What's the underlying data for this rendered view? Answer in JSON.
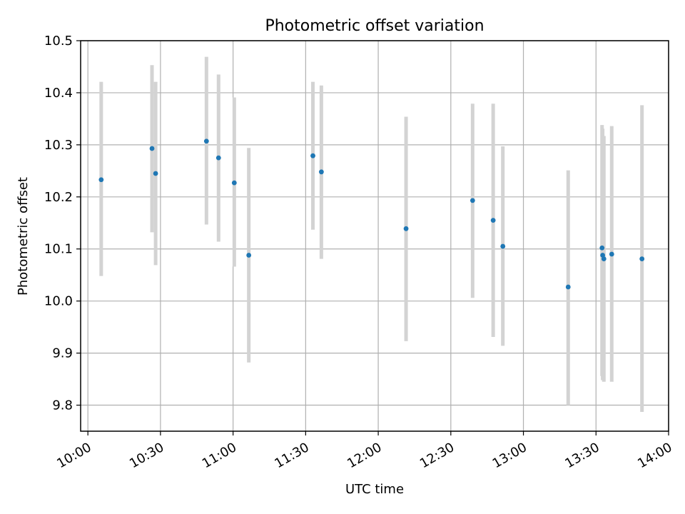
{
  "chart_data": {
    "type": "scatter",
    "title": "Photometric offset variation",
    "xlabel": "UTC time",
    "ylabel": "Photometric offset",
    "x_axis_type": "time",
    "xlim": [
      "09:57",
      "14:00"
    ],
    "ylim": [
      9.75,
      10.5
    ],
    "x_ticks": [
      "10:00",
      "10:30",
      "11:00",
      "11:30",
      "12:00",
      "12:30",
      "13:00",
      "13:30",
      "14:00"
    ],
    "y_ticks": [
      "9.8",
      "9.9",
      "10.0",
      "10.1",
      "10.2",
      "10.3",
      "10.4",
      "10.5"
    ],
    "grid": true,
    "colors": {
      "points": "#1f77b4",
      "error_bars": "#d3d3d3",
      "grid": "#b0b0b0"
    },
    "series": [
      {
        "points": [
          {
            "x": "10:05:30",
            "y": 10.233,
            "y_low": 10.048,
            "y_high": 10.421
          },
          {
            "x": "10:26:30",
            "y": 10.293,
            "y_low": 10.132,
            "y_high": 10.453
          },
          {
            "x": "10:28:00",
            "y": 10.245,
            "y_low": 10.069,
            "y_high": 10.421
          },
          {
            "x": "10:49:00",
            "y": 10.307,
            "y_low": 10.147,
            "y_high": 10.469
          },
          {
            "x": "10:54:00",
            "y": 10.275,
            "y_low": 10.114,
            "y_high": 10.435
          },
          {
            "x": "11:00:30",
            "y": 10.227,
            "y_low": 10.066,
            "y_high": 10.391
          },
          {
            "x": "11:06:30",
            "y": 10.088,
            "y_low": 9.882,
            "y_high": 10.294
          },
          {
            "x": "11:33:00",
            "y": 10.279,
            "y_low": 10.137,
            "y_high": 10.421
          },
          {
            "x": "11:36:30",
            "y": 10.248,
            "y_low": 10.081,
            "y_high": 10.414
          },
          {
            "x": "12:11:30",
            "y": 10.139,
            "y_low": 9.923,
            "y_high": 10.354
          },
          {
            "x": "12:39:00",
            "y": 10.193,
            "y_low": 10.006,
            "y_high": 10.379
          },
          {
            "x": "12:47:30",
            "y": 10.155,
            "y_low": 9.931,
            "y_high": 10.379
          },
          {
            "x": "12:51:30",
            "y": 10.105,
            "y_low": 9.914,
            "y_high": 10.297
          },
          {
            "x": "13:18:30",
            "y": 10.027,
            "y_low": 9.8,
            "y_high": 10.251
          },
          {
            "x": "13:32:30",
            "y": 10.102,
            "y_low": 9.856,
            "y_high": 10.338
          },
          {
            "x": "13:32:45",
            "y": 10.088,
            "y_low": 9.848,
            "y_high": 10.331
          },
          {
            "x": "13:33:15",
            "y": 10.081,
            "y_low": 9.845,
            "y_high": 10.317
          },
          {
            "x": "13:36:30",
            "y": 10.09,
            "y_low": 9.845,
            "y_high": 10.336
          },
          {
            "x": "13:49:00",
            "y": 10.081,
            "y_low": 9.787,
            "y_high": 10.376
          }
        ]
      }
    ]
  }
}
